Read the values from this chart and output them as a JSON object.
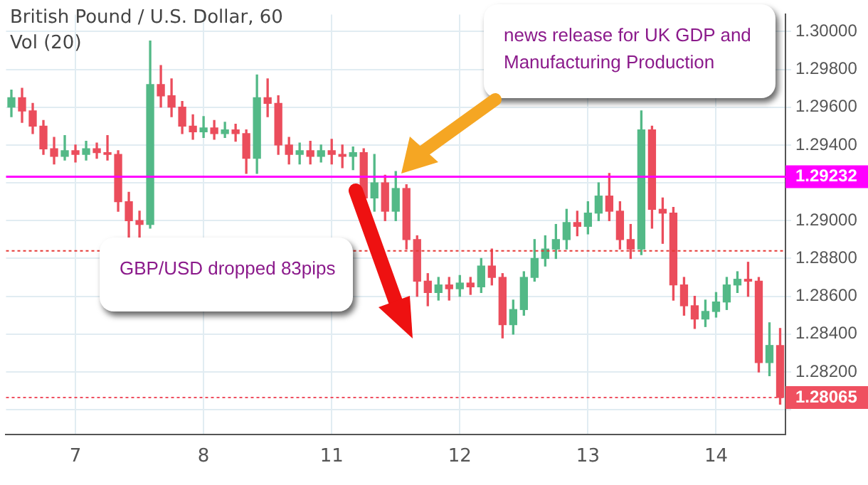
{
  "chart_data": {
    "type": "candlestick",
    "title": "British Pound / U.S. Dollar, 60",
    "subtitle": "Vol (20)",
    "categories": [
      null,
      null,
      null,
      null,
      null,
      null,
      "7",
      null,
      null,
      null,
      null,
      null,
      null,
      null,
      null,
      null,
      null,
      null,
      "8",
      null,
      null,
      null,
      null,
      null,
      null,
      null,
      null,
      null,
      null,
      null,
      "11",
      null,
      null,
      null,
      null,
      null,
      null,
      null,
      null,
      null,
      null,
      null,
      "12",
      null,
      null,
      null,
      null,
      null,
      null,
      null,
      null,
      null,
      null,
      null,
      "13",
      null,
      null,
      null,
      null,
      null,
      null,
      null,
      null,
      null,
      null,
      null,
      "14",
      null,
      null,
      null,
      null,
      null,
      null
    ],
    "ohlc": [
      [
        1.296,
        1.2969,
        1.2955,
        1.2965
      ],
      [
        1.2965,
        1.297,
        1.2952,
        1.2958
      ],
      [
        1.2958,
        1.2962,
        1.2946,
        1.295
      ],
      [
        1.295,
        1.2953,
        1.2935,
        1.2938
      ],
      [
        1.2938,
        1.2944,
        1.293,
        1.2934
      ],
      [
        1.2934,
        1.2945,
        1.2932,
        1.2937
      ],
      [
        1.2937,
        1.294,
        1.2931,
        1.2935
      ],
      [
        1.2935,
        1.2942,
        1.2932,
        1.2938
      ],
      [
        1.2938,
        1.2941,
        1.2933,
        1.2936
      ],
      [
        1.2936,
        1.2945,
        1.2932,
        1.2935
      ],
      [
        1.2935,
        1.2937,
        1.2905,
        1.291
      ],
      [
        1.291,
        1.2915,
        1.2891,
        1.29
      ],
      [
        1.29,
        1.2905,
        1.289,
        1.2898
      ],
      [
        1.2898,
        1.2995,
        1.2896,
        1.2972
      ],
      [
        1.2972,
        1.2982,
        1.296,
        1.2966
      ],
      [
        1.2966,
        1.2975,
        1.2955,
        1.296
      ],
      [
        1.296,
        1.2963,
        1.2946,
        1.295
      ],
      [
        1.295,
        1.2956,
        1.2943,
        1.2947
      ],
      [
        1.2947,
        1.2955,
        1.2944,
        1.2949
      ],
      [
        1.2949,
        1.2953,
        1.2943,
        1.2946
      ],
      [
        1.2946,
        1.2952,
        1.2944,
        1.2948
      ],
      [
        1.2948,
        1.2951,
        1.2942,
        1.2946
      ],
      [
        1.2946,
        1.2948,
        1.2925,
        1.2933
      ],
      [
        1.2933,
        1.2977,
        1.2925,
        1.2965
      ],
      [
        1.2965,
        1.2975,
        1.2955,
        1.2962
      ],
      [
        1.2962,
        1.2966,
        1.2935,
        1.294
      ],
      [
        1.294,
        1.2944,
        1.293,
        1.2935
      ],
      [
        1.2935,
        1.2941,
        1.293,
        1.2937
      ],
      [
        1.2937,
        1.2942,
        1.293,
        1.2934
      ],
      [
        1.2934,
        1.294,
        1.2931,
        1.2937
      ],
      [
        1.2937,
        1.2943,
        1.293,
        1.2935
      ],
      [
        1.2935,
        1.294,
        1.2928,
        1.2934
      ],
      [
        1.2934,
        1.2939,
        1.2927,
        1.2936
      ],
      [
        1.2936,
        1.2938,
        1.2905,
        1.2912
      ],
      [
        1.2912,
        1.2935,
        1.2905,
        1.292
      ],
      [
        1.292,
        1.2924,
        1.29,
        1.2905
      ],
      [
        1.2905,
        1.2926,
        1.29,
        1.2917
      ],
      [
        1.2917,
        1.2919,
        1.2885,
        1.289
      ],
      [
        1.289,
        1.2892,
        1.286,
        1.2868
      ],
      [
        1.2868,
        1.2872,
        1.2855,
        1.2862
      ],
      [
        1.2862,
        1.287,
        1.2858,
        1.2866
      ],
      [
        1.2866,
        1.287,
        1.2858,
        1.2864
      ],
      [
        1.2864,
        1.2871,
        1.286,
        1.2867
      ],
      [
        1.2867,
        1.287,
        1.2861,
        1.2865
      ],
      [
        1.2865,
        1.288,
        1.2862,
        1.2876
      ],
      [
        1.2876,
        1.2885,
        1.2866,
        1.287
      ],
      [
        1.287,
        1.2872,
        1.2838,
        1.2845
      ],
      [
        1.2845,
        1.2858,
        1.284,
        1.2853
      ],
      [
        1.2853,
        1.2873,
        1.285,
        1.287
      ],
      [
        1.287,
        1.289,
        1.2868,
        1.288
      ],
      [
        1.288,
        1.2892,
        1.2876,
        1.2885
      ],
      [
        1.2885,
        1.2898,
        1.288,
        1.289
      ],
      [
        1.289,
        1.2906,
        1.2885,
        1.2899
      ],
      [
        1.2899,
        1.2905,
        1.2892,
        1.2897
      ],
      [
        1.2897,
        1.291,
        1.2893,
        1.2904
      ],
      [
        1.2904,
        1.292,
        1.29,
        1.2913
      ],
      [
        1.2913,
        1.2925,
        1.29,
        1.2905
      ],
      [
        1.2905,
        1.291,
        1.2885,
        1.289
      ],
      [
        1.289,
        1.2898,
        1.288,
        1.2885
      ],
      [
        1.2885,
        1.2958,
        1.2882,
        1.2948
      ],
      [
        1.2948,
        1.295,
        1.2896,
        1.2906
      ],
      [
        1.2906,
        1.2912,
        1.2888,
        1.2904
      ],
      [
        1.2904,
        1.2907,
        1.2858,
        1.2866
      ],
      [
        1.2866,
        1.287,
        1.285,
        1.2855
      ],
      [
        1.2855,
        1.286,
        1.2843,
        1.2848
      ],
      [
        1.2848,
        1.2858,
        1.2844,
        1.2852
      ],
      [
        1.2852,
        1.2862,
        1.2849,
        1.2857
      ],
      [
        1.2857,
        1.287,
        1.2853,
        1.2866
      ],
      [
        1.2866,
        1.2873,
        1.2862,
        1.2869
      ],
      [
        1.2869,
        1.2878,
        1.286,
        1.2868
      ],
      [
        1.2868,
        1.287,
        1.282,
        1.2825
      ],
      [
        1.2825,
        1.2846,
        1.2818,
        1.2834
      ],
      [
        1.2834,
        1.2843,
        1.2803,
        1.28065
      ]
    ],
    "ylim": [
      1.2787,
      1.3009
    ],
    "yticks": [
      {
        "value": 1.28,
        "label": null
      },
      {
        "value": 1.282,
        "label": "1.28200"
      },
      {
        "value": 1.284,
        "label": "1.28400"
      },
      {
        "value": 1.286,
        "label": "1.28600"
      },
      {
        "value": 1.288,
        "label": "1.28800"
      },
      {
        "value": 1.29,
        "label": "1.29000"
      },
      {
        "value": 1.292,
        "label": null
      },
      {
        "value": 1.294,
        "label": "1.29400"
      },
      {
        "value": 1.296,
        "label": "1.29600"
      },
      {
        "value": 1.298,
        "label": "1.29800"
      },
      {
        "value": 1.3,
        "label": "1.30000"
      }
    ],
    "grid": true,
    "ref_lines": [
      {
        "axis": "y",
        "value": 1.29232,
        "label": "1.29232",
        "color": "#ff00ff",
        "line_style": "solid"
      },
      {
        "axis": "y",
        "value": 1.2884,
        "color": "#e53935",
        "line_style": "dotted"
      },
      {
        "axis": "y",
        "value": 1.28065,
        "label": "1.28065",
        "color": "#ef5060",
        "line_style": "dotted"
      }
    ],
    "annotations": [
      "news release for UK GDP and Manufacturing Production",
      "GBP/USD dropped 83pips"
    ]
  }
}
